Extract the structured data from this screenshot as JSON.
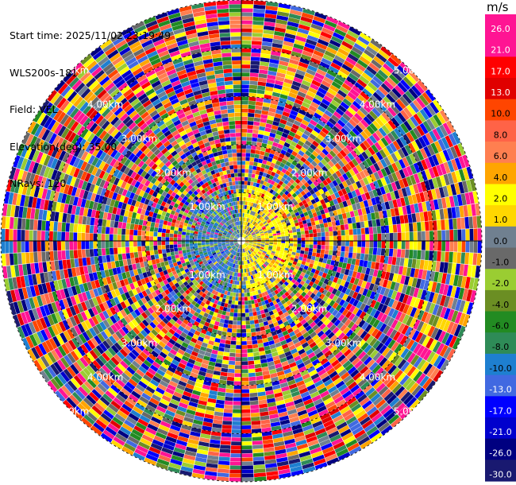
{
  "info": {
    "start_time": "Start time: 2025/11/02 23:19:49",
    "instrument": "WLS200s-181",
    "field": "Field: VEL",
    "elevation": "Elevation(deg): 35.00",
    "nrays": "NRays: 120"
  },
  "colorbar": {
    "unit": "m/s",
    "ticks": [
      "26.0",
      "21.0",
      "17.0",
      "13.0",
      "10.0",
      "8.0",
      "6.0",
      "4.0",
      "2.0",
      "1.0",
      "0.0",
      "-1.0",
      "-2.0",
      "-4.0",
      "-6.0",
      "-8.0",
      "-10.0",
      "-13.0",
      "-17.0",
      "-21.0",
      "-26.0",
      "-30.0"
    ],
    "colors": [
      "#ff1493",
      "#ff1493",
      "#ff0000",
      "#e00000",
      "#ff4500",
      "#ff6347",
      "#ff7f50",
      "#ffa500",
      "#ffff00",
      "#ffd700",
      "#708090",
      "#696969",
      "#9acd32",
      "#6b8e23",
      "#228b22",
      "#2e8b57",
      "#1e7fd0",
      "#4169e1",
      "#0000ff",
      "#0000cd",
      "#000080",
      "#191970"
    ]
  },
  "chart_data": {
    "type": "ppi",
    "field": "VEL",
    "units": "m/s",
    "nrays": 120,
    "range_rings_km": [
      1.0,
      2.0,
      3.0,
      4.0,
      5.0
    ],
    "range_ring_labels": [
      "1.00km",
      "2.00km",
      "3.00km",
      "4.00km",
      "5.00km"
    ],
    "max_range_km": 5.0,
    "color_levels": [
      -30.0,
      -26.0,
      -21.0,
      -17.0,
      -13.0,
      -10.0,
      -8.0,
      -6.0,
      -4.0,
      -2.0,
      -1.0,
      0.0,
      1.0,
      2.0,
      4.0,
      6.0,
      8.0,
      10.0,
      13.0,
      17.0,
      21.0,
      26.0,
      30.0
    ],
    "near_field_pattern": "positive (yellow, 2–4 m/s) to the east of centre, negative (blue, -8 to -13 m/s) to the west within about 1 km; far field noisy across full scale"
  }
}
